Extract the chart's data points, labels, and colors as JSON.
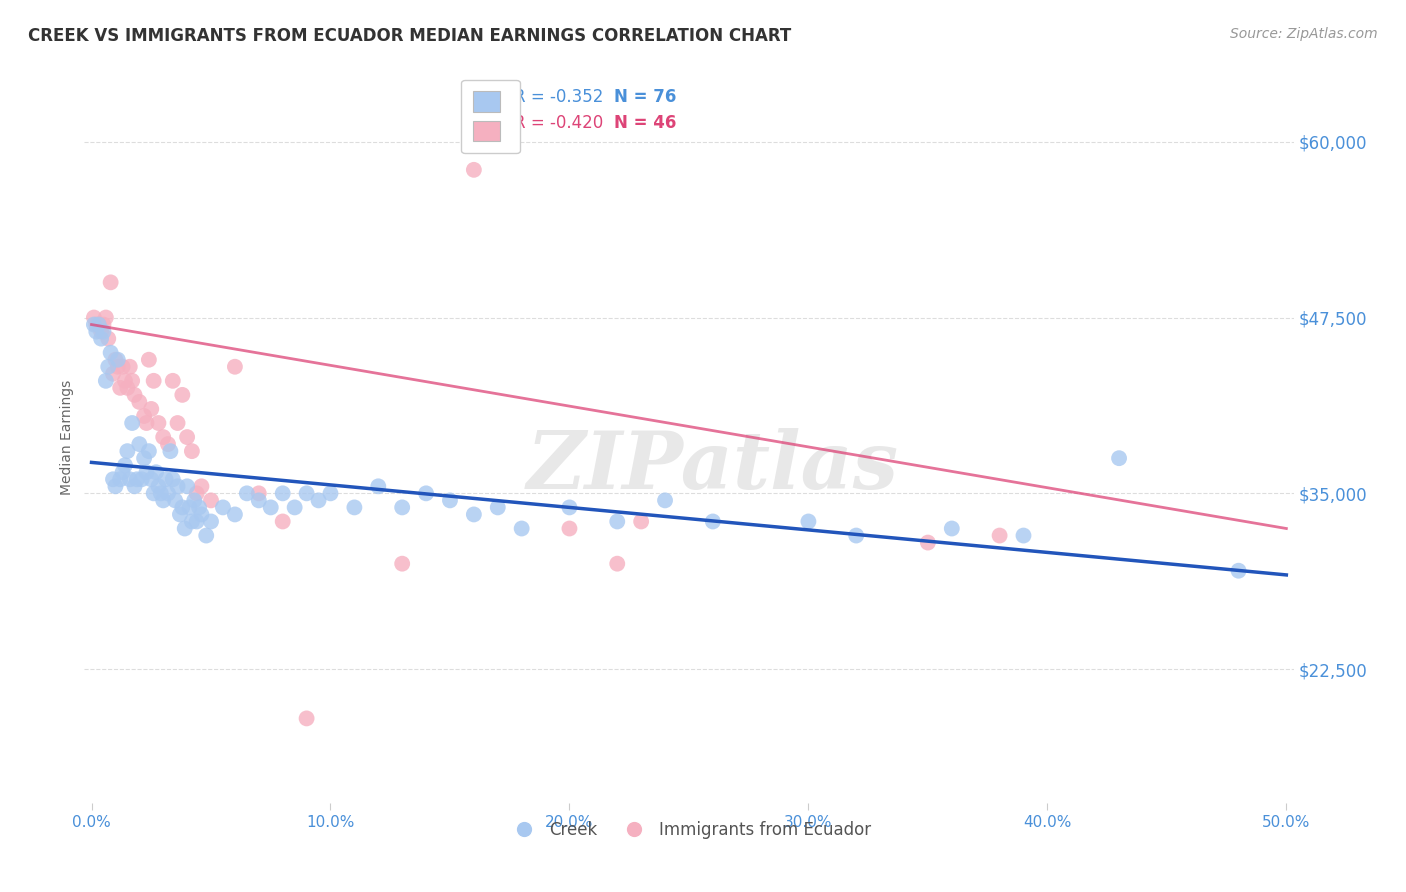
{
  "title": "CREEK VS IMMIGRANTS FROM ECUADOR MEDIAN EARNINGS CORRELATION CHART",
  "source": "Source: ZipAtlas.com",
  "ylabel": "Median Earnings",
  "y_ticks": [
    22500,
    35000,
    47500,
    60000
  ],
  "y_tick_labels": [
    "$22,500",
    "$35,000",
    "$47,500",
    "$60,000"
  ],
  "y_min": 13000,
  "y_max": 65000,
  "x_min": -0.003,
  "x_max": 0.503,
  "watermark": "ZIPatlas",
  "legend_blue_r": "-0.352",
  "legend_blue_n": "76",
  "legend_pink_r": "-0.420",
  "legend_pink_n": "46",
  "blue_color": "#a8c8f0",
  "pink_color": "#f5b0c0",
  "blue_line_color": "#2255bb",
  "pink_line_color": "#dd4477",
  "axis_color": "#4a90d9",
  "title_color": "#333333",
  "source_color": "#999999",
  "ylabel_color": "#666666",
  "background_color": "#ffffff",
  "grid_color": "#dddddd",
  "blue_points": [
    [
      0.001,
      47000
    ],
    [
      0.002,
      46500
    ],
    [
      0.003,
      47000
    ],
    [
      0.004,
      46000
    ],
    [
      0.005,
      46500
    ],
    [
      0.006,
      43000
    ],
    [
      0.007,
      44000
    ],
    [
      0.008,
      45000
    ],
    [
      0.009,
      36000
    ],
    [
      0.01,
      35500
    ],
    [
      0.011,
      44500
    ],
    [
      0.012,
      36000
    ],
    [
      0.013,
      36500
    ],
    [
      0.014,
      37000
    ],
    [
      0.015,
      38000
    ],
    [
      0.016,
      36000
    ],
    [
      0.017,
      40000
    ],
    [
      0.018,
      35500
    ],
    [
      0.019,
      36000
    ],
    [
      0.02,
      38500
    ],
    [
      0.021,
      36000
    ],
    [
      0.022,
      37500
    ],
    [
      0.023,
      36500
    ],
    [
      0.024,
      38000
    ],
    [
      0.025,
      36000
    ],
    [
      0.026,
      35000
    ],
    [
      0.027,
      36500
    ],
    [
      0.028,
      35500
    ],
    [
      0.029,
      35000
    ],
    [
      0.03,
      34500
    ],
    [
      0.031,
      36000
    ],
    [
      0.032,
      35000
    ],
    [
      0.033,
      38000
    ],
    [
      0.034,
      36000
    ],
    [
      0.035,
      34500
    ],
    [
      0.036,
      35500
    ],
    [
      0.037,
      33500
    ],
    [
      0.038,
      34000
    ],
    [
      0.039,
      32500
    ],
    [
      0.04,
      35500
    ],
    [
      0.041,
      34000
    ],
    [
      0.042,
      33000
    ],
    [
      0.043,
      34500
    ],
    [
      0.044,
      33000
    ],
    [
      0.045,
      34000
    ],
    [
      0.046,
      33500
    ],
    [
      0.048,
      32000
    ],
    [
      0.05,
      33000
    ],
    [
      0.055,
      34000
    ],
    [
      0.06,
      33500
    ],
    [
      0.065,
      35000
    ],
    [
      0.07,
      34500
    ],
    [
      0.075,
      34000
    ],
    [
      0.08,
      35000
    ],
    [
      0.085,
      34000
    ],
    [
      0.09,
      35000
    ],
    [
      0.095,
      34500
    ],
    [
      0.1,
      35000
    ],
    [
      0.11,
      34000
    ],
    [
      0.12,
      35500
    ],
    [
      0.13,
      34000
    ],
    [
      0.14,
      35000
    ],
    [
      0.15,
      34500
    ],
    [
      0.16,
      33500
    ],
    [
      0.17,
      34000
    ],
    [
      0.18,
      32500
    ],
    [
      0.2,
      34000
    ],
    [
      0.22,
      33000
    ],
    [
      0.24,
      34500
    ],
    [
      0.26,
      33000
    ],
    [
      0.3,
      33000
    ],
    [
      0.32,
      32000
    ],
    [
      0.36,
      32500
    ],
    [
      0.39,
      32000
    ],
    [
      0.43,
      37500
    ],
    [
      0.48,
      29500
    ]
  ],
  "pink_points": [
    [
      0.001,
      47500
    ],
    [
      0.002,
      47000
    ],
    [
      0.003,
      47000
    ],
    [
      0.004,
      46500
    ],
    [
      0.005,
      47000
    ],
    [
      0.006,
      47500
    ],
    [
      0.007,
      46000
    ],
    [
      0.008,
      50000
    ],
    [
      0.009,
      43500
    ],
    [
      0.01,
      44500
    ],
    [
      0.011,
      44000
    ],
    [
      0.012,
      42500
    ],
    [
      0.013,
      44000
    ],
    [
      0.014,
      43000
    ],
    [
      0.015,
      42500
    ],
    [
      0.016,
      44000
    ],
    [
      0.017,
      43000
    ],
    [
      0.018,
      42000
    ],
    [
      0.02,
      41500
    ],
    [
      0.022,
      40500
    ],
    [
      0.023,
      40000
    ],
    [
      0.024,
      44500
    ],
    [
      0.025,
      41000
    ],
    [
      0.026,
      43000
    ],
    [
      0.028,
      40000
    ],
    [
      0.03,
      39000
    ],
    [
      0.032,
      38500
    ],
    [
      0.034,
      43000
    ],
    [
      0.036,
      40000
    ],
    [
      0.038,
      42000
    ],
    [
      0.04,
      39000
    ],
    [
      0.042,
      38000
    ],
    [
      0.044,
      35000
    ],
    [
      0.046,
      35500
    ],
    [
      0.05,
      34500
    ],
    [
      0.06,
      44000
    ],
    [
      0.07,
      35000
    ],
    [
      0.08,
      33000
    ],
    [
      0.09,
      19000
    ],
    [
      0.13,
      30000
    ],
    [
      0.16,
      58000
    ],
    [
      0.2,
      32500
    ],
    [
      0.22,
      30000
    ],
    [
      0.23,
      33000
    ],
    [
      0.35,
      31500
    ],
    [
      0.38,
      32000
    ]
  ]
}
